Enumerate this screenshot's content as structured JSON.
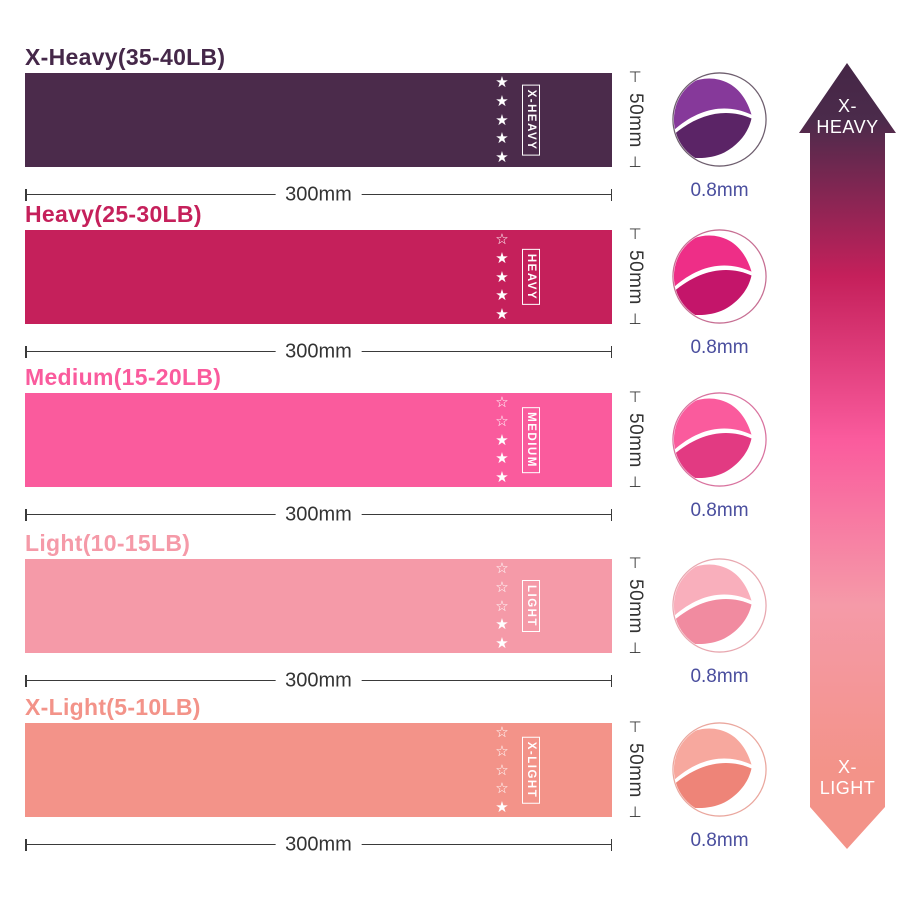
{
  "text_color": "#333333",
  "thickness_text_color": "#4A4E9E",
  "star_glyphs": {
    "filled": "★",
    "empty": "☆"
  },
  "rows": [
    {
      "title": "X-Heavy(35-40LB)",
      "label": "X-HEAVY",
      "band_color": "#4B2B4B",
      "title_color": "#452849",
      "stars_filled": 5,
      "stars_total": 5,
      "width_label": "300mm",
      "height_label": "50mm",
      "thickness_label": "0.8mm",
      "fold_light": "#86399A",
      "fold_dark": "#5B2466",
      "circle_border": "#6E5E6E"
    },
    {
      "title": "Heavy(25-30LB)",
      "label": "HEAVY",
      "band_color": "#C5205B",
      "title_color": "#C5205B",
      "stars_filled": 4,
      "stars_total": 5,
      "width_label": "300mm",
      "height_label": "50mm",
      "thickness_label": "0.8mm",
      "fold_light": "#EE2E87",
      "fold_dark": "#C4156A",
      "circle_border": "#C76F93"
    },
    {
      "title": "Medium(15-20LB)",
      "label": "MEDIUM",
      "band_color": "#FA5B9D",
      "title_color": "#FA5B9D",
      "stars_filled": 3,
      "stars_total": 5,
      "width_label": "300mm",
      "height_label": "50mm",
      "thickness_label": "0.8mm",
      "fold_light": "#FA5B9D",
      "fold_dark": "#E23A82",
      "circle_border": "#D9739F"
    },
    {
      "title": "Light(10-15LB)",
      "label": "LIGHT",
      "band_color": "#F59AA8",
      "title_color": "#F59AA8",
      "stars_filled": 2,
      "stars_total": 5,
      "width_label": "300mm",
      "height_label": "50mm",
      "thickness_label": "0.8mm",
      "fold_light": "#F9AFBC",
      "fold_dark": "#F18BA0",
      "circle_border": "#E8A8B0"
    },
    {
      "title": "X-Light(5-10LB)",
      "label": "X-LIGHT",
      "band_color": "#F39389",
      "title_color": "#F39389",
      "stars_filled": 1,
      "stars_total": 5,
      "width_label": "300mm",
      "height_label": "50mm",
      "thickness_label": "0.8mm",
      "fold_light": "#F7A89E",
      "fold_dark": "#EE8478",
      "circle_border": "#EAA79E"
    }
  ],
  "arrow": {
    "top_line1": "X-",
    "top_line2": "HEAVY",
    "bottom_line1": "X-",
    "bottom_line2": "LIGHT",
    "gradient": [
      "#452646",
      "#4B2B4B",
      "#C5205B",
      "#FA5B9D",
      "#F59AA8",
      "#F39389"
    ]
  }
}
